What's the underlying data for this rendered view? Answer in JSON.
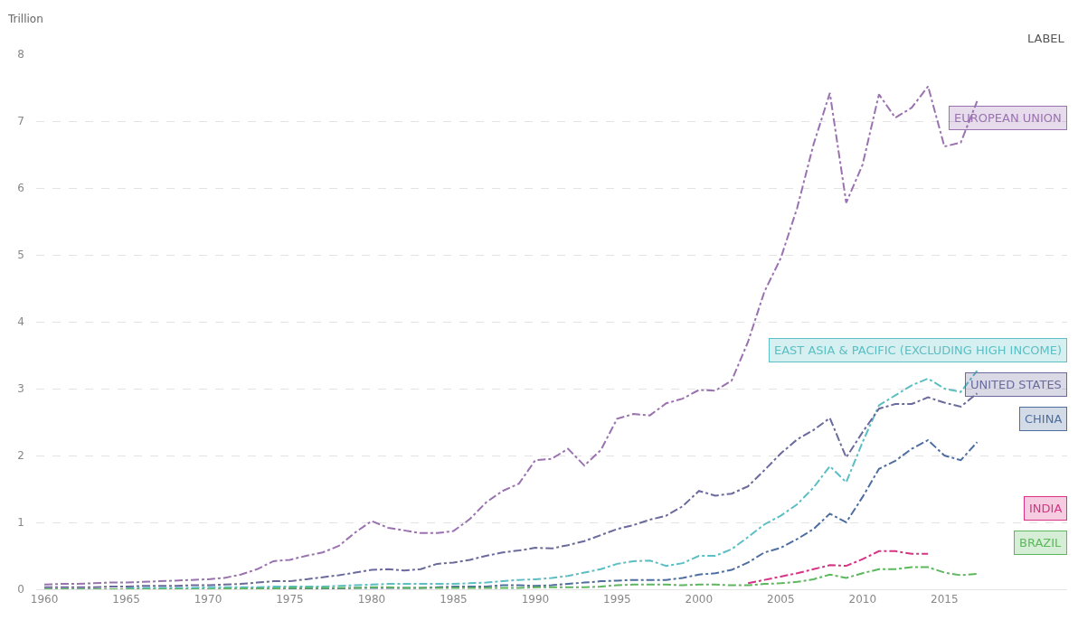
{
  "chart_data": {
    "type": "line",
    "ylabel": "Trillion",
    "x": [
      1960,
      1961,
      1962,
      1963,
      1964,
      1965,
      1966,
      1967,
      1968,
      1969,
      1970,
      1971,
      1972,
      1973,
      1974,
      1975,
      1976,
      1977,
      1978,
      1979,
      1980,
      1981,
      1982,
      1983,
      1984,
      1985,
      1986,
      1987,
      1988,
      1989,
      1990,
      1991,
      1992,
      1993,
      1994,
      1995,
      1996,
      1997,
      1998,
      1999,
      2000,
      2001,
      2002,
      2003,
      2004,
      2005,
      2006,
      2007,
      2008,
      2009,
      2010,
      2011,
      2012,
      2013,
      2014,
      2015,
      2016,
      2017
    ],
    "series": [
      {
        "name": "EUROPEAN UNION",
        "color": "#9b72b0",
        "values": [
          0.07,
          0.08,
          0.08,
          0.09,
          0.1,
          0.1,
          0.11,
          0.12,
          0.13,
          0.14,
          0.15,
          0.17,
          0.22,
          0.3,
          0.42,
          0.44,
          0.5,
          0.55,
          0.65,
          0.85,
          1.02,
          0.92,
          0.88,
          0.84,
          0.84,
          0.87,
          1.05,
          1.3,
          1.47,
          1.58,
          1.93,
          1.95,
          2.1,
          1.85,
          2.08,
          2.55,
          2.62,
          2.6,
          2.78,
          2.85,
          2.98,
          2.97,
          3.12,
          3.7,
          4.45,
          4.95,
          5.7,
          6.65,
          7.42,
          5.78,
          6.35,
          7.4,
          7.05,
          7.2,
          7.52,
          6.62,
          6.68,
          7.3
        ]
      },
      {
        "name": "EAST ASIA & PACIFIC (EXCLUDING HIGH INCOME)",
        "color": "#5bbfc4",
        "values": [
          null,
          null,
          null,
          null,
          null,
          0.02,
          0.02,
          0.02,
          0.02,
          0.02,
          0.03,
          0.03,
          0.03,
          0.03,
          0.04,
          0.04,
          0.04,
          0.04,
          0.05,
          0.06,
          0.07,
          0.08,
          0.08,
          0.08,
          0.08,
          0.08,
          0.09,
          0.1,
          0.12,
          0.14,
          0.15,
          0.17,
          0.2,
          0.25,
          0.3,
          0.38,
          0.42,
          0.43,
          0.35,
          0.39,
          0.5,
          0.5,
          0.6,
          0.78,
          0.97,
          1.1,
          1.27,
          1.52,
          1.84,
          1.6,
          2.2,
          2.75,
          2.9,
          3.05,
          3.15,
          3.0,
          2.95,
          3.27
        ]
      },
      {
        "name": "UNITED STATES",
        "color": "#6a6a9c",
        "values": [
          0.03,
          0.03,
          0.03,
          0.03,
          0.04,
          0.04,
          0.05,
          0.05,
          0.05,
          0.06,
          0.06,
          0.07,
          0.08,
          0.1,
          0.12,
          0.12,
          0.15,
          0.18,
          0.21,
          0.25,
          0.29,
          0.3,
          0.28,
          0.3,
          0.38,
          0.4,
          0.44,
          0.5,
          0.55,
          0.58,
          0.62,
          0.61,
          0.66,
          0.72,
          0.81,
          0.9,
          0.96,
          1.04,
          1.1,
          1.24,
          1.47,
          1.4,
          1.43,
          1.54,
          1.78,
          2.03,
          2.24,
          2.38,
          2.56,
          1.97,
          2.35,
          2.7,
          2.77,
          2.77,
          2.87,
          2.79,
          2.73,
          2.93
        ]
      },
      {
        "name": "CHINA",
        "color": "#4f6ea0",
        "values": [
          0.0,
          0.0,
          0.0,
          0.0,
          0.0,
          0.0,
          0.0,
          0.0,
          0.0,
          0.0,
          0.0,
          0.0,
          0.0,
          0.01,
          0.01,
          0.01,
          0.01,
          0.01,
          0.01,
          0.02,
          0.02,
          0.02,
          0.02,
          0.02,
          0.03,
          0.04,
          0.04,
          0.04,
          0.06,
          0.06,
          0.05,
          0.06,
          0.08,
          0.1,
          0.12,
          0.13,
          0.14,
          0.14,
          0.14,
          0.17,
          0.22,
          0.24,
          0.29,
          0.4,
          0.55,
          0.62,
          0.75,
          0.9,
          1.13,
          1.0,
          1.38,
          1.8,
          1.92,
          2.1,
          2.23,
          2.0,
          1.93,
          2.2
        ]
      },
      {
        "name": "INDIA",
        "color": "#d63384",
        "values": [
          null,
          null,
          null,
          null,
          null,
          null,
          null,
          null,
          null,
          null,
          null,
          null,
          null,
          null,
          null,
          null,
          null,
          null,
          null,
          null,
          null,
          null,
          null,
          null,
          null,
          null,
          null,
          null,
          null,
          null,
          null,
          null,
          null,
          null,
          null,
          null,
          null,
          null,
          null,
          null,
          null,
          null,
          null,
          0.09,
          0.14,
          0.19,
          0.24,
          0.3,
          0.36,
          0.35,
          0.45,
          0.57,
          0.57,
          0.53,
          0.53,
          null,
          null,
          null
        ]
      },
      {
        "name": "BRAZIL",
        "color": "#5cb85c",
        "values": [
          0.0,
          0.0,
          0.0,
          0.0,
          0.0,
          0.0,
          0.0,
          0.0,
          0.0,
          0.0,
          0.0,
          0.01,
          0.01,
          0.01,
          0.01,
          0.02,
          0.02,
          0.02,
          0.02,
          0.02,
          0.03,
          0.03,
          0.02,
          0.02,
          0.02,
          0.02,
          0.02,
          0.02,
          0.02,
          0.02,
          0.03,
          0.03,
          0.03,
          0.03,
          0.04,
          0.06,
          0.07,
          0.07,
          0.07,
          0.06,
          0.07,
          0.07,
          0.06,
          0.06,
          0.08,
          0.09,
          0.11,
          0.15,
          0.22,
          0.17,
          0.24,
          0.3,
          0.3,
          0.33,
          0.33,
          0.25,
          0.21,
          0.23
        ]
      }
    ],
    "xlim": [
      1959.5,
      2022.5
    ],
    "xticks": [
      1960,
      1965,
      1970,
      1975,
      1980,
      1985,
      1990,
      1995,
      2000,
      2005,
      2010,
      2015
    ],
    "ylim": [
      0,
      8
    ],
    "yticks": [
      0,
      1,
      2,
      3,
      4,
      5,
      6,
      7,
      8
    ],
    "grid": "y",
    "legend": "right",
    "marker": "none",
    "line_style": "dashed",
    "annotations": [
      "LABEL"
    ]
  }
}
